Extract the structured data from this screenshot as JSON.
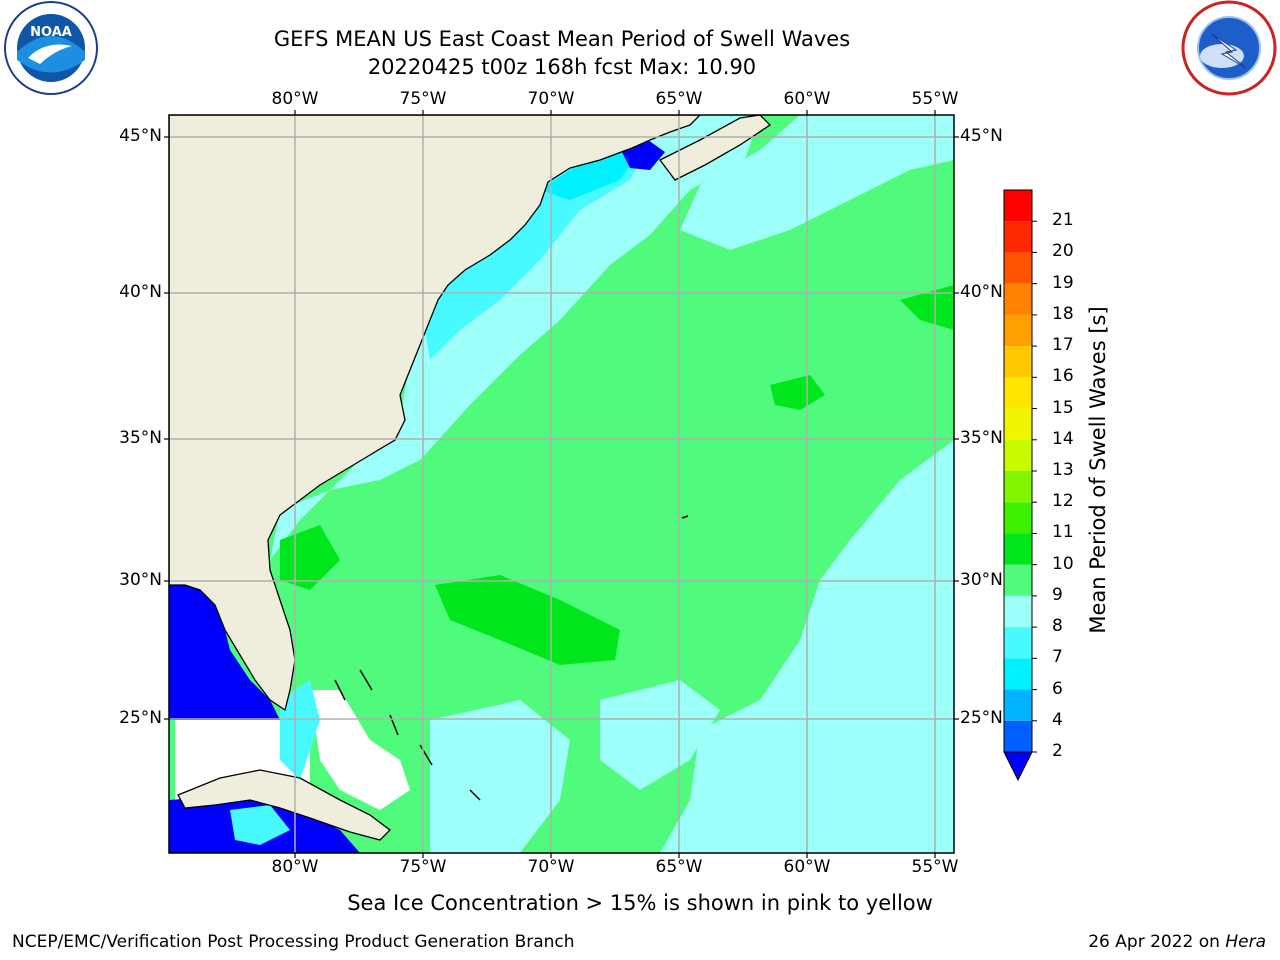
{
  "header": {
    "title_line1": "GEFS MEAN US East Coast Mean Period of Swell Waves",
    "title_line2": "20220425 t00z 168h fcst   Max: 10.90"
  },
  "logos": {
    "left": {
      "name": "noaa-logo",
      "text": "NOAA",
      "ring_text": "NATIONAL OCEANIC AND ATMOSPHERIC ADMINISTRATION · U.S. DEPARTMENT OF COMMERCE"
    },
    "right": {
      "name": "nws-logo",
      "ring_text": "NATIONAL WEATHER SERVICE"
    }
  },
  "map": {
    "lon_labels": [
      "80°W",
      "75°W",
      "70°W",
      "65°W",
      "60°W",
      "55°W"
    ],
    "lat_labels": [
      "45°N",
      "40°N",
      "35°N",
      "30°N",
      "25°N"
    ],
    "extent": {
      "lon_min": -85,
      "lon_max": -54.1,
      "lat_min": 20.3,
      "lat_max": 46.1
    },
    "colors": {
      "land": "#efeedc",
      "grid": "#b0b0b0",
      "coast": "#000000"
    }
  },
  "colorbar": {
    "title": "Mean Period of Swell Waves [s]",
    "tick_labels": [
      "2",
      "4",
      "6",
      "7",
      "8",
      "9",
      "10",
      "11",
      "12",
      "13",
      "14",
      "15",
      "16",
      "17",
      "18",
      "19",
      "20",
      "21"
    ],
    "colors": [
      "#0060ff",
      "#00b4ff",
      "#00f0ff",
      "#48faff",
      "#9cfff8",
      "#50fa7c",
      "#00e61c",
      "#3cf000",
      "#82f500",
      "#c8fa00",
      "#f0f500",
      "#ffe600",
      "#ffc800",
      "#ffa000",
      "#ff8200",
      "#ff5500",
      "#ff2800",
      "#ff0000"
    ],
    "under_color": "#0000ff"
  },
  "footer": {
    "subtitle": "Sea Ice Concentration > 15% is shown in pink to yellow",
    "credit": "NCEP/EMC/Verification Post Processing Product Generation Branch",
    "date": "26 Apr 2022 on ",
    "host": "Hera"
  }
}
